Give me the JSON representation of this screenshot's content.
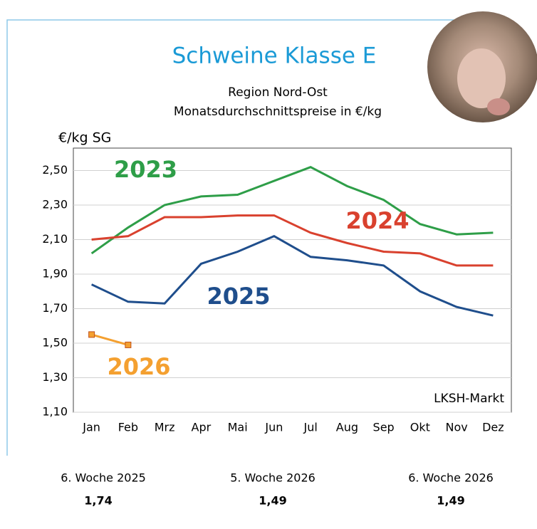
{
  "chart_data": {
    "type": "line",
    "title": "Schweine Klasse E",
    "subtitle": [
      "Region Nord-Ost",
      "Monatsdurchschnittspreise in €/kg"
    ],
    "y_label": "€/kg SG",
    "annotation": "LKSH-Markt",
    "categories": [
      "Jan",
      "Feb",
      "Mrz",
      "Apr",
      "Mai",
      "Jun",
      "Jul",
      "Aug",
      "Sep",
      "Okt",
      "Nov",
      "Dez"
    ],
    "series": [
      {
        "name": "2023",
        "color": "#2e9e48",
        "values": [
          2.02,
          2.17,
          2.3,
          2.35,
          2.36,
          2.44,
          2.52,
          2.41,
          2.33,
          2.19,
          2.13,
          2.14
        ]
      },
      {
        "name": "2024",
        "color": "#d9412e",
        "values": [
          2.1,
          2.12,
          2.23,
          2.23,
          2.24,
          2.24,
          2.14,
          2.08,
          2.03,
          2.02,
          1.95,
          1.95
        ]
      },
      {
        "name": "2025",
        "color": "#1f4e8c",
        "values": [
          1.84,
          1.74,
          1.73,
          1.96,
          2.03,
          2.12,
          2.0,
          1.98,
          1.95,
          1.8,
          1.71,
          1.66
        ]
      },
      {
        "name": "2026",
        "color": "#f4a030",
        "marker": "square",
        "values": [
          1.55,
          1.49,
          null,
          null,
          null,
          null,
          null,
          null,
          null,
          null,
          null,
          null
        ]
      }
    ],
    "ylim": [
      1.1,
      2.63
    ],
    "yticks": [
      {
        "value": 1.1,
        "label": "1,10"
      },
      {
        "value": 1.3,
        "label": "1,30"
      },
      {
        "value": 1.5,
        "label": "1,50"
      },
      {
        "value": 1.7,
        "label": "1,70"
      },
      {
        "value": 1.9,
        "label": "1,90"
      },
      {
        "value": 2.1,
        "label": "2,10"
      },
      {
        "value": 2.3,
        "label": "2,30"
      },
      {
        "value": 2.5,
        "label": "2,50"
      }
    ],
    "grid": true
  },
  "summary": [
    {
      "label": "6. Woche 2025",
      "value": "1,74"
    },
    {
      "label": "5. Woche 2026",
      "value": "1,49"
    },
    {
      "label": "6. Woche 2026",
      "value": "1,49"
    }
  ]
}
